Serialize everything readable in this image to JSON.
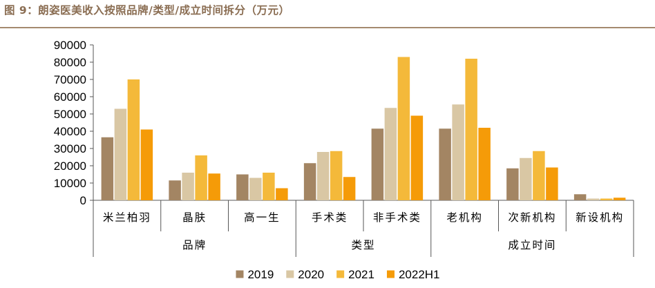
{
  "title": "图 9：朗姿医美收入按照品牌/类型/成立时间拆分（万元）",
  "chart_data": {
    "type": "bar",
    "title": "图 9：朗姿医美收入按照品牌/类型/成立时间拆分（万元）",
    "categories": [
      "米兰柏羽",
      "晶肤",
      "高一生",
      "手术类",
      "非手术类",
      "老机构",
      "次新机构",
      "新设机构"
    ],
    "groups": [
      {
        "label": "品牌",
        "categories": [
          "米兰柏羽",
          "晶肤",
          "高一生"
        ]
      },
      {
        "label": "类型",
        "categories": [
          "手术类",
          "非手术类"
        ]
      },
      {
        "label": "成立时间",
        "categories": [
          "老机构",
          "次新机构",
          "新设机构"
        ]
      }
    ],
    "series": [
      {
        "name": "2019",
        "color": "#a38563",
        "values": [
          36500,
          11500,
          15000,
          21500,
          41500,
          41500,
          18500,
          3500
        ]
      },
      {
        "name": "2020",
        "color": "#d9c7a4",
        "values": [
          53000,
          16000,
          13000,
          28000,
          53500,
          55500,
          24500,
          1000
        ]
      },
      {
        "name": "2021",
        "color": "#f4b93a",
        "values": [
          70000,
          26000,
          16000,
          28500,
          83000,
          82000,
          28500,
          1000
        ]
      },
      {
        "name": "2022H1",
        "color": "#f59b08",
        "values": [
          41000,
          15500,
          7000,
          13500,
          49000,
          42000,
          19000,
          1500
        ]
      }
    ],
    "yticks": [
      0,
      10000,
      20000,
      30000,
      40000,
      50000,
      60000,
      70000,
      80000,
      90000
    ],
    "ylim": [
      0,
      90000
    ],
    "grid": false,
    "legend": "bottom"
  }
}
